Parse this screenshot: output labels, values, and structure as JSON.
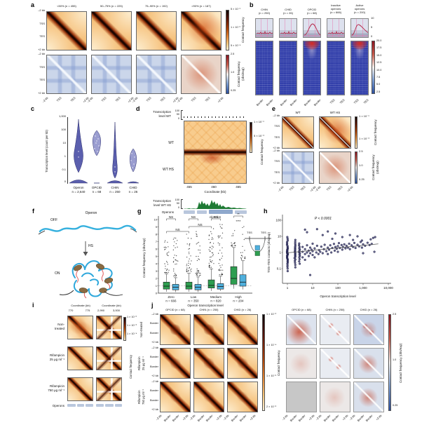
{
  "panel_a": {
    "label": "a",
    "titles": [
      "<50% (n = 455)",
      "50–75% (n = 225)",
      "75–90% (n = 192)",
      ">90% (n = 187)"
    ],
    "yticks": [
      "–2 kb",
      "TSS",
      "TES",
      "+2 kb"
    ],
    "xticks": [
      "–2 kb",
      "TSS",
      "TES",
      "+2 kb"
    ],
    "cb_top_ticks": [
      "5 × 10⁻¹",
      "1 × 10⁻²",
      "5 × 10⁻⁴"
    ],
    "cb_top_title": "Contact frequency",
    "cb_bot_ticks": [
      "2.5",
      "1.0",
      "0.25"
    ],
    "cb_bot_title_1": "Contact frequency",
    "cb_bot_title_2": "(obs/exp)"
  },
  "panel_b": {
    "label": "b",
    "columns": [
      {
        "lines": [
          "CHIN",
          "(n = 250)"
        ],
        "xticks": [
          "Border",
          "Border"
        ],
        "trace": "flat",
        "strip": "plain"
      },
      {
        "lines": [
          "CHID",
          "(n = 26)"
        ],
        "xticks": [
          "Border",
          "Border"
        ],
        "trace": "flat",
        "strip": "plain"
      },
      {
        "lines": [
          "OPCID",
          "(n = 68)"
        ],
        "xticks": [
          "Border",
          "Border"
        ],
        "trace": "peak",
        "strip": "peak"
      },
      {
        "lines": [
          "Inactive",
          "operons",
          "(n = 666)"
        ],
        "xticks": [
          "TSS",
          "TES"
        ],
        "trace": "flat",
        "strip": "plain"
      },
      {
        "lines": [
          "Active",
          "operons",
          "(n = 200)"
        ],
        "xticks": [
          "TSS",
          "TES"
        ],
        "trace": "peak2",
        "strip": "peak"
      }
    ],
    "yticks": [
      "10",
      "5",
      "0"
    ],
    "cb_ticks": [
      "20.0",
      "17.5",
      "15.0",
      "12.5",
      "10.0",
      "7.5",
      "5.0",
      "2.5"
    ]
  },
  "panel_c": {
    "label": "c",
    "ylabel": "Transcription level (count per kb)",
    "yticks": [
      "1,000",
      "100",
      "10",
      "1",
      "0.1",
      "0"
    ],
    "cats": [
      {
        "name": "Operon",
        "n": "n = 2,640"
      },
      {
        "name": "OPCID",
        "n": "n = 68"
      },
      {
        "name": "CHIN",
        "n": "n = 250"
      },
      {
        "name": "CHID",
        "n": "n = 26"
      }
    ]
  },
  "panel_d": {
    "label": "d",
    "track_top": [
      "Transcription",
      "level WT"
    ],
    "scale": [
      "100",
      "50",
      "0"
    ],
    "row_wt": "WT",
    "row_wths": "WT HS",
    "xticks": [
      "455",
      "460",
      "465"
    ],
    "xlabel": "Coordinate (kb)",
    "track_bot": [
      "Transcription",
      "level WT HS"
    ],
    "operons": "Operons",
    "gene": "clpX-lon",
    "cb_ticks": [
      "1 × 10⁻¹",
      "5 × 10⁻³"
    ],
    "cb_title": "Contact frequency"
  },
  "panel_e": {
    "label": "e",
    "titles": [
      "WT",
      "WT HS"
    ],
    "yticks": [
      "–2 kb",
      "TSS",
      "TES",
      "+2 kb"
    ],
    "xticks": [
      "–2 kb",
      "TSS",
      "TES",
      "+2 kb"
    ],
    "cb1_ticks": [
      "1 × 10⁻¹",
      "1 × 10⁻³"
    ],
    "cb1_title": "Contact frequency",
    "cb2_ticks": [
      "2.5",
      "1.0",
      "0.25"
    ],
    "cb2_title_1": "Contact frequency",
    "cb2_title_2": "(obs/exp)"
  },
  "panel_f": {
    "label": "f",
    "off": "OFF",
    "operon": "Operon",
    "hs": "HS",
    "on": "ON"
  },
  "panel_g": {
    "label": "g",
    "ylabel": "Contact frequency (obs/exp)",
    "yticks": [
      "0",
      "1",
      "2",
      "3",
      "4",
      "5",
      "6",
      "7",
      "8",
      "9",
      "10"
    ],
    "xlabel": "Operon transcription level",
    "cats": [
      {
        "name": "Zero",
        "n": "n = 666"
      },
      {
        "name": "Low",
        "n": "n = 350"
      },
      {
        "name": "Medium",
        "n": "n = 820"
      },
      {
        "name": "High",
        "n": "n = 204"
      }
    ],
    "inset_tss": "TSS",
    "inset_tes": "TES"
  },
  "panel_h": {
    "label": "h",
    "p_label": "P < 0.0001",
    "ylabel": "TSS–TES contacts (obs/exp)",
    "yticks": [
      "100",
      "10",
      "1",
      "0.1"
    ],
    "xticks": [
      "1",
      "10",
      "100",
      "1,000",
      "10,000"
    ],
    "xlabel": "Operon transcription level"
  },
  "panel_i": {
    "label": "i",
    "coord_label": "Coordinate (kb)",
    "xticks_left": [
      "770",
      "775"
    ],
    "xticks_right": [
      "2,990",
      "3,000"
    ],
    "rows": [
      [
        "Non-",
        "treated"
      ],
      [
        "Rifampicin",
        "25 μg ml⁻¹"
      ],
      [
        "Rifampicin",
        "750 μg ml⁻¹"
      ]
    ],
    "operons": "Operons",
    "cb_ticks": [
      "1 × 10⁻²",
      "1 × 10⁻³",
      "1 × 10⁻⁴"
    ],
    "cb_title": "Contact frequency"
  },
  "panel_j": {
    "label": "j",
    "titles": [
      "OPCID (n = 68)",
      "CHIN (n = 250)",
      "CHID (n = 26)"
    ],
    "row_labels": [
      [
        "Non-treated"
      ],
      [
        "Rifampicin",
        "25 μg ml⁻¹"
      ],
      [
        "Rifampicin",
        "750 μg ml⁻¹"
      ]
    ],
    "yticks": [
      "–2 kb",
      "Border",
      "Border",
      "+2 kb"
    ],
    "xticks": [
      "–2 kb",
      "Border",
      "Border",
      "+2 kb"
    ],
    "cb_left_ticks": [
      "1 × 10⁻³",
      "1 × 10⁻⁴",
      "1 × 10⁻⁵",
      "2 × 10⁻⁶"
    ],
    "cb_left_title": "Contact frequency",
    "cb_right_ticks": [
      "2.5",
      "1.0",
      "0.25"
    ],
    "cb_right_title": "Contact frequency (obs/exp)"
  },
  "chart_data": [
    {
      "id": "c",
      "type": "violin",
      "ylabel": "Transcription level (count per kb)",
      "yscale": "log",
      "yticks": [
        0,
        0.1,
        1,
        10,
        100,
        1000
      ],
      "categories": [
        "Operon",
        "OPCID",
        "CHIN",
        "CHID"
      ],
      "n": [
        2640,
        68,
        250,
        26
      ],
      "approx_medians": [
        1,
        15,
        0.4,
        1
      ]
    },
    {
      "id": "g",
      "type": "box",
      "ylabel": "Contact frequency (obs/exp)",
      "ylim": [
        0,
        10
      ],
      "xlabel": "Operon transcription level",
      "categories": [
        "Zero",
        "Low",
        "Medium",
        "High"
      ],
      "n": [
        666,
        350,
        820,
        204
      ],
      "series": [
        {
          "name": "series-green",
          "color": "#2e9e50",
          "boxes": [
            [
              0.2,
              0.55,
              0.95,
              1.5,
              2.6
            ],
            [
              0.2,
              0.55,
              0.95,
              1.5,
              2.7
            ],
            [
              0.3,
              0.7,
              1.05,
              1.8,
              3.3
            ],
            [
              0.6,
              1.2,
              2.0,
              3.6,
              6.2
            ]
          ]
        },
        {
          "name": "series-blue",
          "color": "#4fb0dd",
          "boxes": [
            [
              0.15,
              0.45,
              0.8,
              1.2,
              2.1
            ],
            [
              0.15,
              0.45,
              0.8,
              1.2,
              2.2
            ],
            [
              0.3,
              0.55,
              0.9,
              1.3,
              2.3
            ],
            [
              0.5,
              0.95,
              1.5,
              2.5,
              4.4
            ]
          ]
        }
      ],
      "significance": {
        "pairs": [
          "NS",
          "NS",
          "NS",
          "**"
        ],
        "between": [
          "NS",
          "NS"
        ],
        "high_extra": "****"
      },
      "reference_line": 1
    },
    {
      "id": "h",
      "type": "scatter",
      "xscale": "log",
      "yscale": "log",
      "xlabel": "Operon transcription level",
      "ylabel": "TSS–TES contacts (obs/exp)",
      "xlim": [
        1,
        10000
      ],
      "ylim": [
        0.03,
        100
      ],
      "p_label": "P < 0.0001",
      "columns": [
        {
          "x": 1,
          "y": [
            0.07,
            0.1,
            0.13,
            0.16,
            0.2,
            0.24,
            0.28,
            0.33,
            0.38,
            0.44,
            0.5,
            0.57,
            0.65,
            0.73,
            0.82,
            0.9,
            1,
            1.1,
            1.25,
            1.4,
            1.6,
            1.8,
            2.1,
            2.5,
            3,
            3.6,
            4.4,
            5.5,
            7,
            9
          ]
        },
        {
          "x": 2,
          "y": [
            0.12,
            0.17,
            0.23,
            0.3,
            0.37,
            0.45,
            0.54,
            0.63,
            0.73,
            0.85,
            1,
            1.15,
            1.35,
            1.6,
            1.9,
            2.3,
            2.8,
            3.5,
            4.5,
            6
          ]
        },
        {
          "x": 3,
          "y": [
            0.2,
            0.28,
            0.38,
            0.5,
            0.62,
            0.75,
            0.9,
            1.05,
            1.25,
            1.5,
            1.8,
            2.2,
            2.8,
            3.6
          ]
        }
      ],
      "points": [
        [
          4,
          0.5
        ],
        [
          4,
          1.1
        ],
        [
          4,
          2.2
        ],
        [
          5,
          0.35
        ],
        [
          5,
          0.8
        ],
        [
          5,
          1.6
        ],
        [
          5,
          26
        ],
        [
          6,
          1
        ],
        [
          6,
          2.8
        ],
        [
          6,
          18
        ],
        [
          7,
          0.6
        ],
        [
          7,
          1.3
        ],
        [
          8,
          0.9
        ],
        [
          8,
          2
        ],
        [
          8,
          0.04
        ],
        [
          9,
          1.5
        ],
        [
          10,
          0.7
        ],
        [
          10,
          1.2
        ],
        [
          10,
          3.5
        ],
        [
          12,
          0.5
        ],
        [
          12,
          1.8
        ],
        [
          14,
          1
        ],
        [
          15,
          2.6
        ],
        [
          15,
          28
        ],
        [
          17,
          0.8
        ],
        [
          18,
          1.4
        ],
        [
          20,
          1.1
        ],
        [
          22,
          2.3
        ],
        [
          25,
          0.9
        ],
        [
          25,
          12
        ],
        [
          28,
          1.6
        ],
        [
          30,
          3
        ],
        [
          35,
          1.2
        ],
        [
          40,
          0.8
        ],
        [
          40,
          2
        ],
        [
          40,
          20
        ],
        [
          45,
          1.5
        ],
        [
          50,
          2.8
        ],
        [
          55,
          1
        ],
        [
          60,
          1.9
        ],
        [
          60,
          7
        ],
        [
          70,
          3.4
        ],
        [
          75,
          1.3
        ],
        [
          80,
          2.2
        ],
        [
          80,
          15
        ],
        [
          90,
          1.7
        ],
        [
          100,
          1.1
        ],
        [
          100,
          2.5
        ],
        [
          110,
          3.8
        ],
        [
          120,
          1.9
        ],
        [
          140,
          2.9
        ],
        [
          150,
          1.5
        ],
        [
          150,
          9
        ],
        [
          160,
          2.2
        ],
        [
          180,
          3.2
        ],
        [
          200,
          1.8
        ],
        [
          220,
          2.6
        ],
        [
          250,
          2
        ],
        [
          280,
          3.5
        ],
        [
          300,
          1.6
        ],
        [
          300,
          12
        ],
        [
          350,
          2.8
        ],
        [
          400,
          2.2
        ],
        [
          400,
          6
        ],
        [
          450,
          3.9
        ],
        [
          500,
          1.9
        ],
        [
          600,
          3
        ],
        [
          600,
          10
        ],
        [
          700,
          2.4
        ],
        [
          800,
          4.5
        ],
        [
          900,
          2
        ],
        [
          900,
          5.5
        ],
        [
          1000,
          3.2
        ],
        [
          1000,
          0.9
        ],
        [
          1200,
          2.6
        ],
        [
          1500,
          4
        ],
        [
          1800,
          2.9
        ],
        [
          2000,
          6.5
        ],
        [
          2200,
          3.4
        ],
        [
          2500,
          8
        ],
        [
          2800,
          1.1
        ],
        [
          3000,
          9
        ]
      ],
      "trend": [
        [
          1,
          0.95
        ],
        [
          4000,
          3.4
        ]
      ]
    }
  ]
}
